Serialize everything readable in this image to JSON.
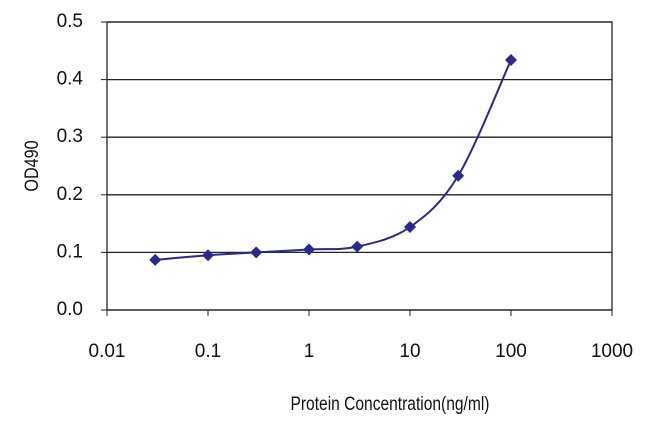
{
  "chart_data": {
    "type": "line",
    "xlabel": "Protein Concentration(ng/ml)",
    "ylabel": "OD490",
    "x": [
      0.03,
      0.1,
      0.3,
      1,
      3,
      10,
      30,
      100
    ],
    "series": [
      {
        "color": "#2a2a8c",
        "values": [
          0.087,
          0.095,
          0.1,
          0.105,
          0.11,
          0.144,
          0.233,
          0.434
        ]
      }
    ],
    "xscale": "log",
    "xlim": [
      0.01,
      1000
    ],
    "xticks": [
      0.01,
      0.1,
      1,
      10,
      100,
      1000
    ],
    "ylim": [
      0,
      0.5
    ],
    "yticks": [
      {
        "value": 0,
        "label": "0.0"
      },
      0.1,
      0.2,
      0.3,
      0.4,
      0.5
    ],
    "grid": true
  }
}
